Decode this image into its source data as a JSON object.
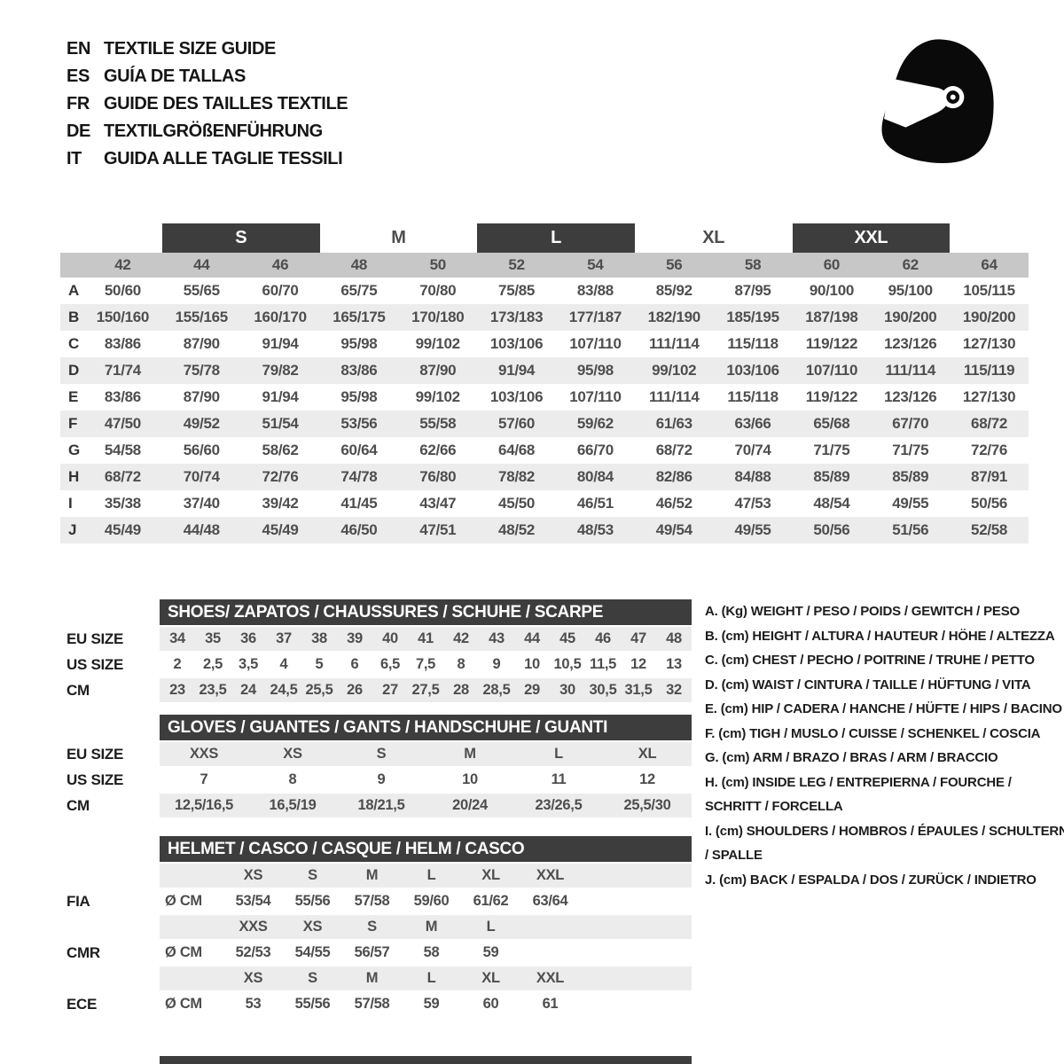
{
  "colors": {
    "dark_bar": "#3d3d3d",
    "size_band": "#c7c7c7",
    "row_stripe": "#ececec",
    "text_dark": "#1d1d1d",
    "text_gray": "#4e4e4e",
    "white": "#ffffff"
  },
  "header": {
    "languages": [
      {
        "code": "EN",
        "title": "TEXTILE SIZE GUIDE"
      },
      {
        "code": "ES",
        "title": "GUÍA DE TALLAS"
      },
      {
        "code": "FR",
        "title": "GUIDE DES TAILLES TEXTILE"
      },
      {
        "code": "DE",
        "title": "TEXTILGRÖßENFÜHRUNG"
      },
      {
        "code": "IT",
        "title": "GUIDA ALLE TAGLIE TESSILI"
      }
    ],
    "icon": "racing-helmet-icon"
  },
  "main_table": {
    "size_groups": [
      {
        "label": "S",
        "boxed": true
      },
      {
        "label": "M",
        "boxed": false
      },
      {
        "label": "L",
        "boxed": true
      },
      {
        "label": "XL",
        "boxed": false
      },
      {
        "label": "XXL",
        "boxed": true
      }
    ],
    "numeric_sizes": [
      "42",
      "44",
      "46",
      "48",
      "50",
      "52",
      "54",
      "56",
      "58",
      "60",
      "62",
      "64"
    ],
    "rows": [
      {
        "letter": "A",
        "values": [
          "50/60",
          "55/65",
          "60/70",
          "65/75",
          "70/80",
          "75/85",
          "83/88",
          "85/92",
          "87/95",
          "90/100",
          "95/100",
          "105/115"
        ]
      },
      {
        "letter": "B",
        "values": [
          "150/160",
          "155/165",
          "160/170",
          "165/175",
          "170/180",
          "173/183",
          "177/187",
          "182/190",
          "185/195",
          "187/198",
          "190/200",
          "190/200"
        ]
      },
      {
        "letter": "C",
        "values": [
          "83/86",
          "87/90",
          "91/94",
          "95/98",
          "99/102",
          "103/106",
          "107/110",
          "111/114",
          "115/118",
          "119/122",
          "123/126",
          "127/130"
        ]
      },
      {
        "letter": "D",
        "values": [
          "71/74",
          "75/78",
          "79/82",
          "83/86",
          "87/90",
          "91/94",
          "95/98",
          "99/102",
          "103/106",
          "107/110",
          "111/114",
          "115/119"
        ]
      },
      {
        "letter": "E",
        "values": [
          "83/86",
          "87/90",
          "91/94",
          "95/98",
          "99/102",
          "103/106",
          "107/110",
          "111/114",
          "115/118",
          "119/122",
          "123/126",
          "127/130"
        ]
      },
      {
        "letter": "F",
        "values": [
          "47/50",
          "49/52",
          "51/54",
          "53/56",
          "55/58",
          "57/60",
          "59/62",
          "61/63",
          "63/66",
          "65/68",
          "67/70",
          "68/72"
        ]
      },
      {
        "letter": "G",
        "values": [
          "54/58",
          "56/60",
          "58/62",
          "60/64",
          "62/66",
          "64/68",
          "66/70",
          "68/72",
          "70/74",
          "71/75",
          "71/75",
          "72/76"
        ]
      },
      {
        "letter": "H",
        "values": [
          "68/72",
          "70/74",
          "72/76",
          "74/78",
          "76/80",
          "78/82",
          "80/84",
          "82/86",
          "84/88",
          "85/89",
          "85/89",
          "87/91"
        ]
      },
      {
        "letter": "I",
        "values": [
          "35/38",
          "37/40",
          "39/42",
          "41/45",
          "43/47",
          "45/50",
          "46/51",
          "46/52",
          "47/53",
          "48/54",
          "49/55",
          "50/56"
        ]
      },
      {
        "letter": "J",
        "values": [
          "45/49",
          "44/48",
          "45/49",
          "46/50",
          "47/51",
          "48/52",
          "48/53",
          "49/54",
          "49/55",
          "50/56",
          "51/56",
          "52/58"
        ]
      }
    ]
  },
  "shoes": {
    "title": "SHOES/ ZAPATOS / CHAUSSURES / SCHUHE / SCARPE",
    "rows": [
      {
        "label": "EU SIZE",
        "values": [
          "34",
          "35",
          "36",
          "37",
          "38",
          "39",
          "40",
          "41",
          "42",
          "43",
          "44",
          "45",
          "46",
          "47",
          "48"
        ]
      },
      {
        "label": "US SIZE",
        "values": [
          "2",
          "2,5",
          "3,5",
          "4",
          "5",
          "6",
          "6,5",
          "7,5",
          "8",
          "9",
          "10",
          "10,5",
          "11,5",
          "12",
          "13"
        ]
      },
      {
        "label": "CM",
        "values": [
          "23",
          "23,5",
          "24",
          "24,5",
          "25,5",
          "26",
          "27",
          "27,5",
          "28",
          "28,5",
          "29",
          "30",
          "30,5",
          "31,5",
          "32"
        ]
      }
    ]
  },
  "gloves": {
    "title": "GLOVES / GUANTES / GANTS / HANDSCHUHE / GUANTI",
    "rows": [
      {
        "label": "EU SIZE",
        "values": [
          "XXS",
          "XS",
          "S",
          "M",
          "L",
          "XL"
        ]
      },
      {
        "label": "US SIZE",
        "values": [
          "7",
          "8",
          "9",
          "10",
          "11",
          "12"
        ]
      },
      {
        "label": "CM",
        "values": [
          "12,5/16,5",
          "16,5/19",
          "18/21,5",
          "20/24",
          "23/26,5",
          "25,5/30"
        ]
      }
    ]
  },
  "helmet_table": {
    "title": "HELMET / CASCO / CASQUE / HELM / CASCO",
    "rows": [
      {
        "type": "sizes",
        "label": "",
        "cells": [
          "",
          "XS",
          "S",
          "M",
          "L",
          "XL",
          "XXL"
        ]
      },
      {
        "type": "values",
        "label": "FIA",
        "cells": [
          "Ø CM",
          "53/54",
          "55/56",
          "57/58",
          "59/60",
          "61/62",
          "63/64"
        ]
      },
      {
        "type": "sizes",
        "label": "",
        "cells": [
          "",
          "XXS",
          "XS",
          "S",
          "M",
          "L",
          ""
        ]
      },
      {
        "type": "values",
        "label": "CMR",
        "cells": [
          "Ø CM",
          "52/53",
          "54/55",
          "56/57",
          "58",
          "59",
          ""
        ]
      },
      {
        "type": "sizes",
        "label": "",
        "cells": [
          "",
          "XS",
          "S",
          "M",
          "L",
          "XL",
          "XXL"
        ]
      },
      {
        "type": "values",
        "label": "ECE",
        "cells": [
          "Ø CM",
          "53",
          "55/56",
          "57/58",
          "59",
          "60",
          "61"
        ]
      }
    ]
  },
  "legend": {
    "items": [
      {
        "key": "A.",
        "unit": "(Kg)",
        "text": "WEIGHT / PESO / POIDS / GEWITCH / PESO"
      },
      {
        "key": "B.",
        "unit": "(cm)",
        "text": "HEIGHT / ALTURA / HAUTEUR / HÖHE / ALTEZZA"
      },
      {
        "key": "C.",
        "unit": "(cm)",
        "text": "CHEST / PECHO / POITRINE / TRUHE / PETTO"
      },
      {
        "key": "D.",
        "unit": "(cm)",
        "text": "WAIST / CINTURA / TAILLE / HÜFTUNG / VITA"
      },
      {
        "key": "E.",
        "unit": "(cm)",
        "text": "HIP / CADERA / HANCHE / HÜFTE / HIPS / BACINO"
      },
      {
        "key": "F.",
        "unit": "(cm)",
        "text": "TIGH / MUSLO / CUISSE / SCHENKEL / COSCIA"
      },
      {
        "key": "G.",
        "unit": "(cm)",
        "text": "ARM / BRAZO / BRAS / ARM / BRACCIO"
      },
      {
        "key": "H.",
        "unit": "(cm)",
        "text": "INSIDE LEG / ENTREPIERNA / FOURCHE / SCHRITT / FORCELLA"
      },
      {
        "key": "I.",
        "unit": "(cm)",
        "text": "SHOULDERS / HOMBROS / ÉPAULES / SCHULTERN / SPALLE"
      },
      {
        "key": "J.",
        "unit": "(cm)",
        "text": "BACK / ESPALDA / DOS / ZURÜCK / INDIETRO"
      }
    ]
  }
}
